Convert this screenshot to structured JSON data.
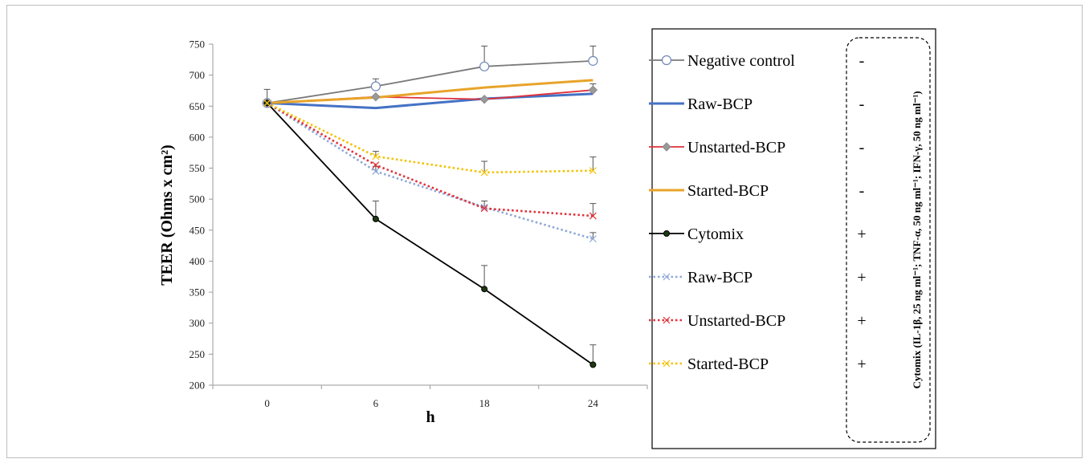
{
  "chart_data": {
    "type": "line",
    "ylabel": "TEER (Ohms x cm²)",
    "xlabel": "h",
    "x": [
      "0",
      "6",
      "18",
      "24"
    ],
    "ylim": [
      200,
      750
    ],
    "yticks": [
      200,
      250,
      300,
      350,
      400,
      450,
      500,
      550,
      600,
      650,
      700,
      750
    ],
    "grid": false,
    "legend_position": "right",
    "series": [
      {
        "name": "Negative control",
        "sign": "-",
        "color": "#7a7a7a",
        "dash": "solid",
        "marker": "open-circle",
        "values": [
          655,
          682,
          714,
          723
        ],
        "errors": [
          22,
          12,
          33,
          24
        ]
      },
      {
        "name": "Raw-BCP",
        "sign": "-",
        "color": "#4472c4",
        "dash": "solid",
        "marker": "none",
        "values": [
          655,
          647,
          662,
          670
        ],
        "errors": [
          0,
          0,
          0,
          0
        ]
      },
      {
        "name": "Unstarted-BCP",
        "sign": "-",
        "color": "#e0313a",
        "dash": "solid",
        "marker": "diamond",
        "values": [
          655,
          665,
          661,
          676
        ],
        "errors": [
          0,
          0,
          0,
          10
        ]
      },
      {
        "name": "Started-BCP",
        "sign": "-",
        "color": "#e8a42a",
        "dash": "solid",
        "marker": "none",
        "values": [
          655,
          664,
          680,
          692
        ],
        "errors": [
          0,
          0,
          0,
          0
        ]
      },
      {
        "name": "Cytomix",
        "sign": "+",
        "color": "#000000",
        "dash": "solid",
        "marker": "filled-circle",
        "values": [
          655,
          468,
          355,
          233
        ],
        "errors": [
          0,
          29,
          38,
          32
        ]
      },
      {
        "name": "Raw-BCP",
        "sign": "+",
        "color": "#8fa8d6",
        "dash": "dotted",
        "marker": "x",
        "values": [
          655,
          545,
          487,
          436
        ],
        "errors": [
          0,
          8,
          0,
          10
        ]
      },
      {
        "name": "Unstarted-BCP",
        "sign": "+",
        "color": "#e0313a",
        "dash": "dotted",
        "marker": "x",
        "values": [
          655,
          555,
          485,
          473
        ],
        "errors": [
          0,
          0,
          12,
          20
        ]
      },
      {
        "name": "Started-BCP",
        "sign": "+",
        "color": "#f2c200",
        "dash": "dotted",
        "marker": "x",
        "values": [
          655,
          569,
          543,
          546
        ],
        "errors": [
          0,
          8,
          18,
          22
        ]
      }
    ],
    "cytomix_note": "Cytomix (IL-1β, 25 ng ml⁻¹; TNF-α, 50 ng ml⁻¹; IFN-γ, 50 ng ml⁻¹)"
  }
}
